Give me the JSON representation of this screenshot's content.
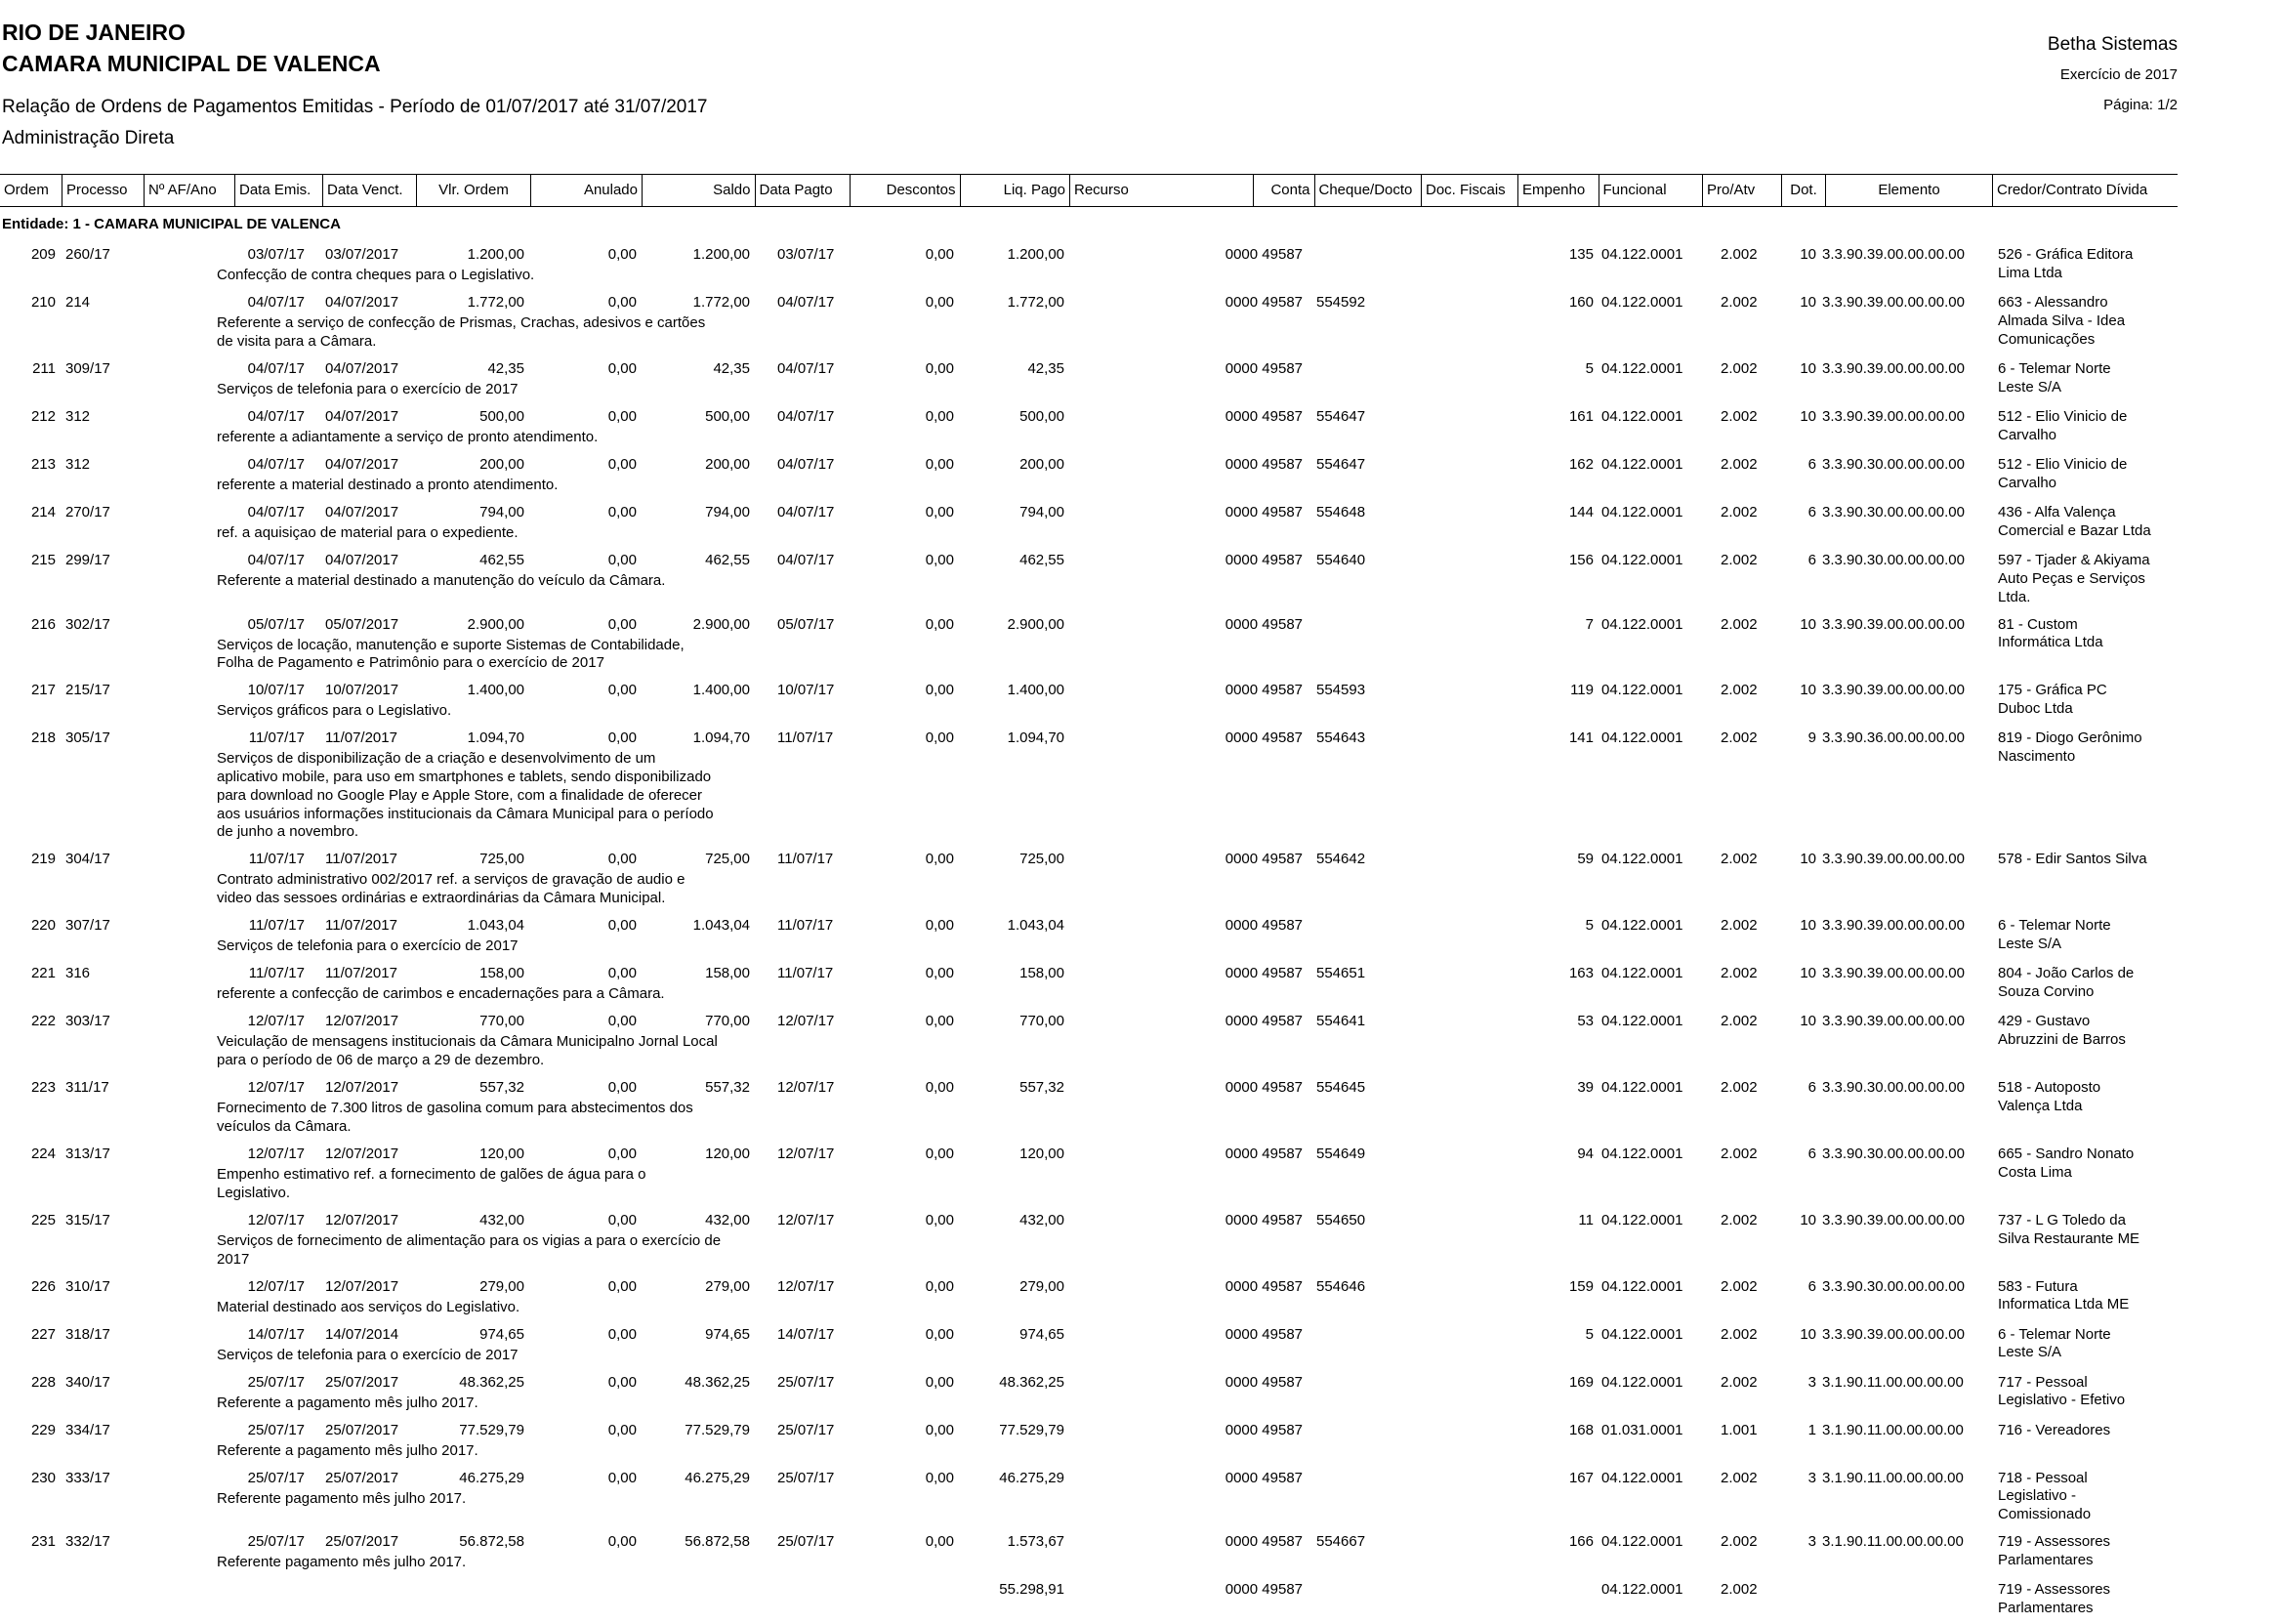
{
  "header": {
    "state": "RIO DE JANEIRO",
    "entity": "CAMARA MUNICIPAL DE VALENCA",
    "report": "Relação de Ordens de Pagamentos Emitidas - Período de 01/07/2017 até 31/07/2017",
    "administration": "Administração Direta",
    "system": "Betha Sistemas",
    "exercise": "Exercício de 2017",
    "page": "Página: 1/2"
  },
  "table": {
    "columns": [
      "Ordem",
      "Processo",
      "Nº AF/Ano",
      "Data Emis.",
      "Data Venct.",
      "Vlr. Ordem",
      "Anulado",
      "Saldo",
      "Data Pagto",
      "Descontos",
      "Liq. Pago",
      "Recurso",
      "Conta",
      "Cheque/Docto",
      "Doc. Fiscais",
      "Empenho",
      "Funcional",
      "Pro/Atv",
      "Dot.",
      "Elemento",
      "Credor/Contrato Dívida"
    ],
    "entity_label": "Entidade: 1 - CAMARA MUNICIPAL DE VALENCA",
    "rows": [
      {
        "o": "209",
        "p": "260/17",
        "de": "03/07/17",
        "dv": "03/07/2017",
        "vo": "1.200,00",
        "an": "0,00",
        "sa": "1.200,00",
        "dp": "03/07/17",
        "ds": "0,00",
        "lp": "1.200,00",
        "ct": "0000 49587",
        "em": "135",
        "fu": "04.122.0001",
        "pa": "2.002",
        "dt": "10",
        "el": "3.3.90.39.00.00.00.00",
        "cr": [
          "526 - Gráfica Editora",
          "Lima Ltda"
        ],
        "d": [
          "Confecção de contra cheques para o Legislativo."
        ]
      },
      {
        "o": "210",
        "p": "214",
        "de": "04/07/17",
        "dv": "04/07/2017",
        "vo": "1.772,00",
        "an": "0,00",
        "sa": "1.772,00",
        "dp": "04/07/17",
        "ds": "0,00",
        "lp": "1.772,00",
        "ct": "0000 49587",
        "ch": "554592",
        "em": "160",
        "fu": "04.122.0001",
        "pa": "2.002",
        "dt": "10",
        "el": "3.3.90.39.00.00.00.00",
        "cr": [
          "663 - Alessandro",
          "Almada Silva - Idea",
          "Comunicações"
        ],
        "d": [
          "Referente a serviço de confecção de Prismas, Crachas, adesivos e cartões",
          "de visita para a Câmara."
        ]
      },
      {
        "o": "211",
        "p": "309/17",
        "de": "04/07/17",
        "dv": "04/07/2017",
        "vo": "42,35",
        "an": "0,00",
        "sa": "42,35",
        "dp": "04/07/17",
        "ds": "0,00",
        "lp": "42,35",
        "ct": "0000 49587",
        "em": "5",
        "fu": "04.122.0001",
        "pa": "2.002",
        "dt": "10",
        "el": "3.3.90.39.00.00.00.00",
        "cr": [
          "6 - Telemar Norte",
          "Leste S/A"
        ],
        "d": [
          "Serviços de telefonia para o exercício de 2017"
        ]
      },
      {
        "o": "212",
        "p": "312",
        "de": "04/07/17",
        "dv": "04/07/2017",
        "vo": "500,00",
        "an": "0,00",
        "sa": "500,00",
        "dp": "04/07/17",
        "ds": "0,00",
        "lp": "500,00",
        "ct": "0000 49587",
        "ch": "554647",
        "em": "161",
        "fu": "04.122.0001",
        "pa": "2.002",
        "dt": "10",
        "el": "3.3.90.39.00.00.00.00",
        "cr": [
          "512 - Elio Vinicio de",
          "Carvalho"
        ],
        "d": [
          "referente a adiantamente a serviço de pronto atendimento."
        ]
      },
      {
        "o": "213",
        "p": "312",
        "de": "04/07/17",
        "dv": "04/07/2017",
        "vo": "200,00",
        "an": "0,00",
        "sa": "200,00",
        "dp": "04/07/17",
        "ds": "0,00",
        "lp": "200,00",
        "ct": "0000 49587",
        "ch": "554647",
        "em": "162",
        "fu": "04.122.0001",
        "pa": "2.002",
        "dt": "6",
        "el": "3.3.90.30.00.00.00.00",
        "cr": [
          "512 - Elio Vinicio de",
          "Carvalho"
        ],
        "d": [
          "referente a material destinado a pronto atendimento."
        ]
      },
      {
        "o": "214",
        "p": "270/17",
        "de": "04/07/17",
        "dv": "04/07/2017",
        "vo": "794,00",
        "an": "0,00",
        "sa": "794,00",
        "dp": "04/07/17",
        "ds": "0,00",
        "lp": "794,00",
        "ct": "0000 49587",
        "ch": "554648",
        "em": "144",
        "fu": "04.122.0001",
        "pa": "2.002",
        "dt": "6",
        "el": "3.3.90.30.00.00.00.00",
        "cr": [
          "436 - Alfa Valença",
          "Comercial e Bazar Ltda"
        ],
        "d": [
          "ref. a aquisiçao de material para o expediente."
        ]
      },
      {
        "o": "215",
        "p": "299/17",
        "de": "04/07/17",
        "dv": "04/07/2017",
        "vo": "462,55",
        "an": "0,00",
        "sa": "462,55",
        "dp": "04/07/17",
        "ds": "0,00",
        "lp": "462,55",
        "ct": "0000 49587",
        "ch": "554640",
        "em": "156",
        "fu": "04.122.0001",
        "pa": "2.002",
        "dt": "6",
        "el": "3.3.90.30.00.00.00.00",
        "cr": [
          "597 - Tjader & Akiyama",
          "Auto Peças e Serviços",
          "Ltda."
        ],
        "d": [
          "Referente a material destinado a manutenção do veículo da Câmara."
        ]
      },
      {
        "o": "216",
        "p": "302/17",
        "de": "05/07/17",
        "dv": "05/07/2017",
        "vo": "2.900,00",
        "an": "0,00",
        "sa": "2.900,00",
        "dp": "05/07/17",
        "ds": "0,00",
        "lp": "2.900,00",
        "ct": "0000 49587",
        "em": "7",
        "fu": "04.122.0001",
        "pa": "2.002",
        "dt": "10",
        "el": "3.3.90.39.00.00.00.00",
        "cr": [
          "81 - Custom",
          "Informática Ltda"
        ],
        "d": [
          "Serviços de locação, manutenção e suporte Sistemas de Contabilidade,",
          "Folha de Pagamento e Patrimônio para o exercício de 2017"
        ]
      },
      {
        "o": "217",
        "p": "215/17",
        "de": "10/07/17",
        "dv": "10/07/2017",
        "vo": "1.400,00",
        "an": "0,00",
        "sa": "1.400,00",
        "dp": "10/07/17",
        "ds": "0,00",
        "lp": "1.400,00",
        "ct": "0000 49587",
        "ch": "554593",
        "em": "119",
        "fu": "04.122.0001",
        "pa": "2.002",
        "dt": "10",
        "el": "3.3.90.39.00.00.00.00",
        "cr": [
          "175 - Gráfica PC",
          "Duboc Ltda"
        ],
        "d": [
          "Serviços gráficos para o Legislativo."
        ]
      },
      {
        "o": "218",
        "p": "305/17",
        "de": "11/07/17",
        "dv": "11/07/2017",
        "vo": "1.094,70",
        "an": "0,00",
        "sa": "1.094,70",
        "dp": "11/07/17",
        "ds": "0,00",
        "lp": "1.094,70",
        "ct": "0000 49587",
        "ch": "554643",
        "em": "141",
        "fu": "04.122.0001",
        "pa": "2.002",
        "dt": "9",
        "el": "3.3.90.36.00.00.00.00",
        "cr": [
          "819 - Diogo Gerônimo",
          "Nascimento"
        ],
        "d": [
          "Serviços de disponibilização de a criação e desenvolvimento de um",
          "aplicativo mobile, para uso em smartphones e tablets, sendo disponibilizado",
          "para download no Google Play e Apple Store, com a finalidade de oferecer",
          "aos usuários  informações institucionais da Câmara Municipal para o período",
          "de junho a novembro."
        ]
      },
      {
        "o": "219",
        "p": "304/17",
        "de": "11/07/17",
        "dv": "11/07/2017",
        "vo": "725,00",
        "an": "0,00",
        "sa": "725,00",
        "dp": "11/07/17",
        "ds": "0,00",
        "lp": "725,00",
        "ct": "0000 49587",
        "ch": "554642",
        "em": "59",
        "fu": "04.122.0001",
        "pa": "2.002",
        "dt": "10",
        "el": "3.3.90.39.00.00.00.00",
        "cr": [
          "578 - Edir Santos Silva"
        ],
        "d": [
          "Contrato administrativo 002/2017 ref. a serviços de gravação de audio e",
          "video das sessoes ordinárias e extraordinárias da Câmara Municipal."
        ]
      },
      {
        "o": "220",
        "p": "307/17",
        "de": "11/07/17",
        "dv": "11/07/2017",
        "vo": "1.043,04",
        "an": "0,00",
        "sa": "1.043,04",
        "dp": "11/07/17",
        "ds": "0,00",
        "lp": "1.043,04",
        "ct": "0000 49587",
        "em": "5",
        "fu": "04.122.0001",
        "pa": "2.002",
        "dt": "10",
        "el": "3.3.90.39.00.00.00.00",
        "cr": [
          "6 - Telemar Norte",
          "Leste S/A"
        ],
        "d": [
          "Serviços de telefonia para o exercício de 2017"
        ]
      },
      {
        "o": "221",
        "p": "316",
        "de": "11/07/17",
        "dv": "11/07/2017",
        "vo": "158,00",
        "an": "0,00",
        "sa": "158,00",
        "dp": "11/07/17",
        "ds": "0,00",
        "lp": "158,00",
        "ct": "0000 49587",
        "ch": "554651",
        "em": "163",
        "fu": "04.122.0001",
        "pa": "2.002",
        "dt": "10",
        "el": "3.3.90.39.00.00.00.00",
        "cr": [
          "804 - João Carlos de",
          "Souza Corvino"
        ],
        "d": [
          "referente a confecção de carimbos e encadernações para a Câmara."
        ]
      },
      {
        "o": "222",
        "p": "303/17",
        "de": "12/07/17",
        "dv": "12/07/2017",
        "vo": "770,00",
        "an": "0,00",
        "sa": "770,00",
        "dp": "12/07/17",
        "ds": "0,00",
        "lp": "770,00",
        "ct": "0000 49587",
        "ch": "554641",
        "em": "53",
        "fu": "04.122.0001",
        "pa": "2.002",
        "dt": "10",
        "el": "3.3.90.39.00.00.00.00",
        "cr": [
          "429 - Gustavo",
          "Abruzzini de Barros"
        ],
        "d": [
          "Veiculação de mensagens institucionais da Câmara Municipalno Jornal Local",
          "para o período de 06 de março a 29 de dezembro."
        ]
      },
      {
        "o": "223",
        "p": "311/17",
        "de": "12/07/17",
        "dv": "12/07/2017",
        "vo": "557,32",
        "an": "0,00",
        "sa": "557,32",
        "dp": "12/07/17",
        "ds": "0,00",
        "lp": "557,32",
        "ct": "0000 49587",
        "ch": "554645",
        "em": "39",
        "fu": "04.122.0001",
        "pa": "2.002",
        "dt": "6",
        "el": "3.3.90.30.00.00.00.00",
        "cr": [
          "518 - Autoposto",
          "Valença Ltda"
        ],
        "d": [
          "Fornecimento de 7.300 litros de gasolina comum para abstecimentos dos",
          "veículos da Câmara."
        ]
      },
      {
        "o": "224",
        "p": "313/17",
        "de": "12/07/17",
        "dv": "12/07/2017",
        "vo": "120,00",
        "an": "0,00",
        "sa": "120,00",
        "dp": "12/07/17",
        "ds": "0,00",
        "lp": "120,00",
        "ct": "0000 49587",
        "ch": "554649",
        "em": "94",
        "fu": "04.122.0001",
        "pa": "2.002",
        "dt": "6",
        "el": "3.3.90.30.00.00.00.00",
        "cr": [
          "665 - Sandro Nonato",
          "Costa Lima"
        ],
        "d": [
          "Empenho estimativo ref. a fornecimento de galões de água para o",
          "Legislativo."
        ]
      },
      {
        "o": "225",
        "p": "315/17",
        "de": "12/07/17",
        "dv": "12/07/2017",
        "vo": "432,00",
        "an": "0,00",
        "sa": "432,00",
        "dp": "12/07/17",
        "ds": "0,00",
        "lp": "432,00",
        "ct": "0000 49587",
        "ch": "554650",
        "em": "11",
        "fu": "04.122.0001",
        "pa": "2.002",
        "dt": "10",
        "el": "3.3.90.39.00.00.00.00",
        "cr": [
          "737 - L G Toledo da",
          "Silva Restaurante ME"
        ],
        "d": [
          "Serviços de fornecimento de alimentação para os vigias a para o exercício de",
          "2017"
        ]
      },
      {
        "o": "226",
        "p": "310/17",
        "de": "12/07/17",
        "dv": "12/07/2017",
        "vo": "279,00",
        "an": "0,00",
        "sa": "279,00",
        "dp": "12/07/17",
        "ds": "0,00",
        "lp": "279,00",
        "ct": "0000 49587",
        "ch": "554646",
        "em": "159",
        "fu": "04.122.0001",
        "pa": "2.002",
        "dt": "6",
        "el": "3.3.90.30.00.00.00.00",
        "cr": [
          "583 - Futura",
          "Informatica Ltda ME"
        ],
        "d": [
          "Material destinado aos serviços do Legislativo."
        ]
      },
      {
        "o": "227",
        "p": "318/17",
        "de": "14/07/17",
        "dv": "14/07/2014",
        "vo": "974,65",
        "an": "0,00",
        "sa": "974,65",
        "dp": "14/07/17",
        "ds": "0,00",
        "lp": "974,65",
        "ct": "0000 49587",
        "em": "5",
        "fu": "04.122.0001",
        "pa": "2.002",
        "dt": "10",
        "el": "3.3.90.39.00.00.00.00",
        "cr": [
          "6 - Telemar Norte",
          "Leste S/A"
        ],
        "d": [
          "Serviços de telefonia para o exercício de 2017"
        ]
      },
      {
        "o": "228",
        "p": "340/17",
        "de": "25/07/17",
        "dv": "25/07/2017",
        "vo": "48.362,25",
        "an": "0,00",
        "sa": "48.362,25",
        "dp": "25/07/17",
        "ds": "0,00",
        "lp": "48.362,25",
        "ct": "0000 49587",
        "em": "169",
        "fu": "04.122.0001",
        "pa": "2.002",
        "dt": "3",
        "el": "3.1.90.11.00.00.00.00",
        "cr": [
          "717 - Pessoal",
          "Legislativo - Efetivo"
        ],
        "d": [
          "Referente a pagamento mês julho 2017."
        ]
      },
      {
        "o": "229",
        "p": "334/17",
        "de": "25/07/17",
        "dv": "25/07/2017",
        "vo": "77.529,79",
        "an": "0,00",
        "sa": "77.529,79",
        "dp": "25/07/17",
        "ds": "0,00",
        "lp": "77.529,79",
        "ct": "0000 49587",
        "em": "168",
        "fu": "01.031.0001",
        "pa": "1.001",
        "dt": "1",
        "el": "3.1.90.11.00.00.00.00",
        "cr": [
          "716 - Vereadores"
        ],
        "d": [
          "Referente a pagamento mês julho 2017."
        ]
      },
      {
        "o": "230",
        "p": "333/17",
        "de": "25/07/17",
        "dv": "25/07/2017",
        "vo": "46.275,29",
        "an": "0,00",
        "sa": "46.275,29",
        "dp": "25/07/17",
        "ds": "0,00",
        "lp": "46.275,29",
        "ct": "0000 49587",
        "em": "167",
        "fu": "04.122.0001",
        "pa": "2.002",
        "dt": "3",
        "el": "3.1.90.11.00.00.00.00",
        "cr": [
          "718 - Pessoal",
          "Legislativo -",
          "Comissionado"
        ],
        "d": [
          "Referente pagamento mês julho 2017."
        ]
      },
      {
        "o": "231",
        "p": "332/17",
        "de": "25/07/17",
        "dv": "25/07/2017",
        "vo": "56.872,58",
        "an": "0,00",
        "sa": "56.872,58",
        "dp": "25/07/17",
        "ds": "0,00",
        "lp": "1.573,67",
        "ct": "0000 49587",
        "ch": "554667",
        "em": "166",
        "fu": "04.122.0001",
        "pa": "2.002",
        "dt": "3",
        "el": "3.1.90.11.00.00.00.00",
        "cr": [
          "719 - Assessores",
          "Parlamentares"
        ],
        "d": [
          "Referente pagamento mês julho 2017."
        ]
      },
      {
        "lp": "55.298,91",
        "ct": "0000 49587",
        "fu": "04.122.0001",
        "pa": "2.002",
        "cr": [
          "719 - Assessores",
          "Parlamentares"
        ]
      }
    ]
  }
}
